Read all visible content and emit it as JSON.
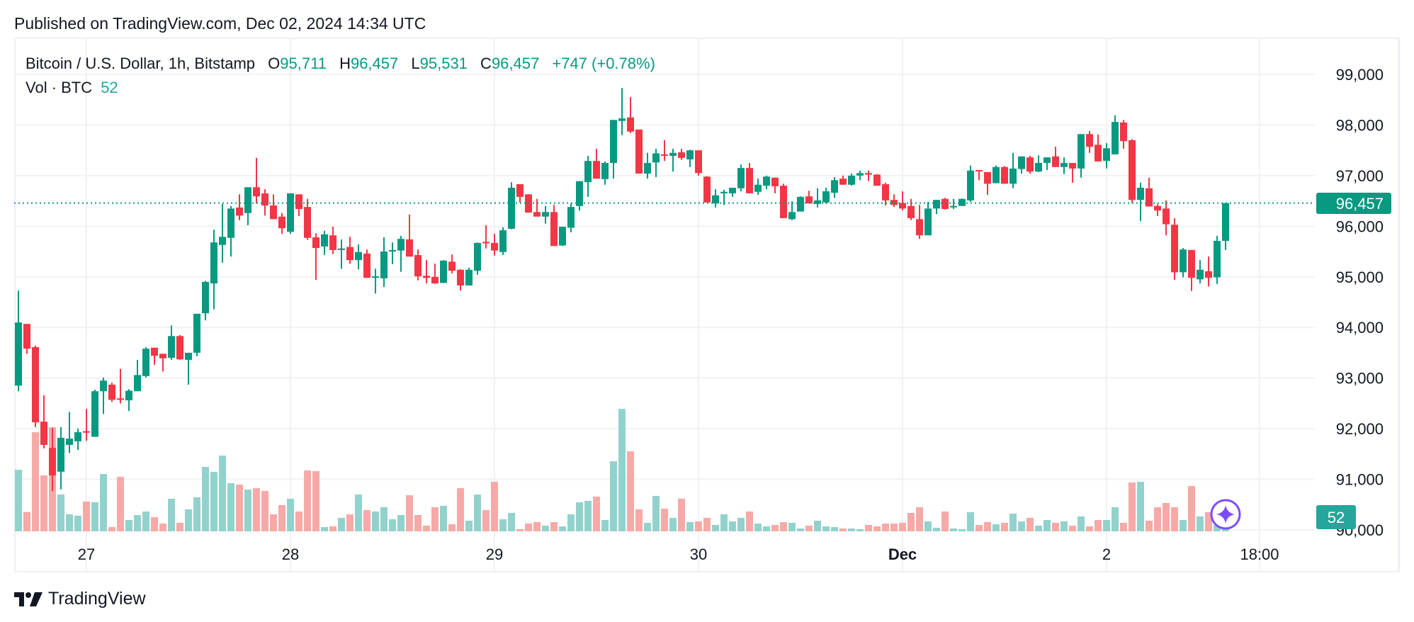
{
  "published": "Published on TradingView.com, Dec 02, 2024 14:34 UTC",
  "legend": {
    "symbol": "Bitcoin / U.S. Dollar, 1h, Bitstamp",
    "o_label": "O",
    "o": "95,711",
    "h_label": "H",
    "h": "96,457",
    "l_label": "L",
    "l": "95,531",
    "c_label": "C",
    "c": "96,457",
    "change": "+747 (+0.78%)",
    "vol_label": "Vol · BTC",
    "vol_value": "52"
  },
  "footer": {
    "brand": "TradingView"
  },
  "colors": {
    "up": "#089981",
    "down": "#F23645",
    "vol_up": "#92D2CC",
    "vol_down": "#F7A9A7",
    "vol_label": "#26A69A",
    "assistant": "#7B4DFF"
  },
  "chart_data": {
    "type": "candlestick",
    "interval": "1h",
    "x_tick_labels": [
      "27",
      "28",
      "29",
      "30",
      "Dec",
      "2",
      "18:00"
    ],
    "y_tick_labels": [
      "99,000",
      "98,000",
      "97,000",
      "96,000",
      "95,000",
      "94,000",
      "93,000",
      "92,000",
      "91,000",
      "90,000"
    ],
    "ylim": [
      90000,
      99000
    ],
    "grid": true,
    "last_price_label": "96,457",
    "last_volume_label": "52",
    "ohlc_fields": [
      "open",
      "high",
      "low",
      "close"
    ],
    "ohlc": [
      [
        92851,
        94728,
        92740,
        94098
      ],
      [
        94070,
        94070,
        93480,
        93580
      ],
      [
        93610,
        93640,
        92030,
        92126
      ],
      [
        92140,
        92660,
        91610,
        91680
      ],
      [
        91620,
        92014,
        90770,
        91076
      ],
      [
        91150,
        92030,
        90800,
        91820
      ],
      [
        91680,
        92330,
        91520,
        91804
      ],
      [
        91750,
        92000,
        91580,
        91930
      ],
      [
        91950,
        92390,
        91760,
        91930
      ],
      [
        91840,
        92770,
        91840,
        92740
      ],
      [
        92740,
        93010,
        92290,
        92950
      ],
      [
        92870,
        92910,
        92530,
        92570
      ],
      [
        92600,
        93180,
        92500,
        92570
      ],
      [
        92560,
        92780,
        92350,
        92750
      ],
      [
        92740,
        93360,
        92740,
        93060
      ],
      [
        93040,
        93610,
        93010,
        93580
      ],
      [
        93600,
        93600,
        93260,
        93440
      ],
      [
        93480,
        93480,
        93130,
        93390
      ],
      [
        93400,
        94040,
        93360,
        93830
      ],
      [
        93830,
        93850,
        93360,
        93370
      ],
      [
        93360,
        93500,
        92870,
        93500
      ],
      [
        93500,
        94270,
        93430,
        94270
      ],
      [
        94280,
        94920,
        94140,
        94900
      ],
      [
        94870,
        95930,
        94360,
        95680
      ],
      [
        95630,
        96440,
        95280,
        95790
      ],
      [
        95770,
        96400,
        95400,
        96350
      ],
      [
        96370,
        96630,
        96120,
        96210
      ],
      [
        96260,
        96770,
        96020,
        96770
      ],
      [
        96770,
        97350,
        96450,
        96590
      ],
      [
        96650,
        96730,
        96210,
        96410
      ],
      [
        96410,
        96630,
        96140,
        96140
      ],
      [
        96190,
        96260,
        95850,
        95960
      ],
      [
        95890,
        96650,
        95850,
        96650
      ],
      [
        96630,
        96630,
        96200,
        96340
      ],
      [
        96380,
        96540,
        95730,
        95770
      ],
      [
        95780,
        95860,
        94940,
        95570
      ],
      [
        95600,
        95910,
        95430,
        95840
      ],
      [
        95820,
        95990,
        95450,
        95530
      ],
      [
        95530,
        95740,
        95160,
        95560
      ],
      [
        95590,
        95790,
        95260,
        95330
      ],
      [
        95330,
        95640,
        95150,
        95490
      ],
      [
        95460,
        95540,
        94980,
        94980
      ],
      [
        95000,
        95160,
        94670,
        95010
      ],
      [
        94970,
        95780,
        94800,
        95500
      ],
      [
        95500,
        95680,
        95250,
        95530
      ],
      [
        95520,
        95810,
        95100,
        95750
      ],
      [
        95740,
        96230,
        95400,
        95400
      ],
      [
        95430,
        95540,
        94930,
        95010
      ],
      [
        95020,
        95330,
        94870,
        94980
      ],
      [
        95000,
        95260,
        94860,
        94870
      ],
      [
        94880,
        95330,
        94880,
        95320
      ],
      [
        95300,
        95440,
        95070,
        95120
      ],
      [
        95140,
        95150,
        94730,
        94830
      ],
      [
        94830,
        95180,
        94830,
        95140
      ],
      [
        95120,
        95680,
        95040,
        95670
      ],
      [
        95690,
        96020,
        95560,
        95680
      ],
      [
        95670,
        95850,
        95420,
        95520
      ],
      [
        95490,
        95980,
        95430,
        95920
      ],
      [
        95950,
        96870,
        95940,
        96760
      ],
      [
        96830,
        96830,
        96470,
        96580
      ],
      [
        96630,
        96630,
        96270,
        96270
      ],
      [
        96280,
        96540,
        96190,
        96190
      ],
      [
        96190,
        96400,
        96050,
        96280
      ],
      [
        96280,
        96420,
        95610,
        95610
      ],
      [
        95620,
        95990,
        95610,
        95990
      ],
      [
        95970,
        96450,
        95880,
        96380
      ],
      [
        96400,
        96890,
        96310,
        96890
      ],
      [
        96870,
        97390,
        96580,
        97290
      ],
      [
        97290,
        97530,
        96940,
        96940
      ],
      [
        96930,
        97280,
        96820,
        97250
      ],
      [
        97250,
        98100,
        96940,
        98100
      ],
      [
        98080,
        98730,
        97800,
        98130
      ],
      [
        98150,
        98550,
        97840,
        97870
      ],
      [
        97910,
        97910,
        97040,
        97040
      ],
      [
        97040,
        97450,
        96940,
        97250
      ],
      [
        97260,
        97530,
        96970,
        97440
      ],
      [
        97420,
        97700,
        97290,
        97400
      ],
      [
        97390,
        97530,
        97080,
        97450
      ],
      [
        97460,
        97530,
        97310,
        97350
      ],
      [
        97320,
        97510,
        97170,
        97500
      ],
      [
        97500,
        97500,
        97000,
        97050
      ],
      [
        96980,
        96990,
        96470,
        96470
      ],
      [
        96450,
        96730,
        96370,
        96610
      ],
      [
        96650,
        96720,
        96420,
        96680
      ],
      [
        96650,
        96760,
        96580,
        96760
      ],
      [
        96750,
        97220,
        96690,
        97150
      ],
      [
        97150,
        97250,
        96650,
        96650
      ],
      [
        96680,
        96940,
        96620,
        96820
      ],
      [
        96800,
        97000,
        96730,
        96980
      ],
      [
        96960,
        96960,
        96650,
        96790
      ],
      [
        96800,
        96840,
        96160,
        96160
      ],
      [
        96140,
        96490,
        96120,
        96280
      ],
      [
        96290,
        96590,
        96290,
        96580
      ],
      [
        96590,
        96700,
        96450,
        96450
      ],
      [
        96440,
        96750,
        96370,
        96510
      ],
      [
        96470,
        96760,
        96450,
        96690
      ],
      [
        96660,
        96970,
        96560,
        96910
      ],
      [
        96940,
        97000,
        96820,
        96820
      ],
      [
        96820,
        97040,
        96800,
        97000
      ],
      [
        97000,
        97100,
        96910,
        97050
      ],
      [
        97050,
        97100,
        96890,
        97020
      ],
      [
        97020,
        97030,
        96800,
        96800
      ],
      [
        96830,
        96860,
        96410,
        96510
      ],
      [
        96520,
        96630,
        96380,
        96420
      ],
      [
        96460,
        96690,
        96310,
        96350
      ],
      [
        96400,
        96540,
        96120,
        96160
      ],
      [
        96140,
        96420,
        95750,
        95820
      ],
      [
        95820,
        96480,
        95820,
        96350
      ],
      [
        96350,
        96520,
        96240,
        96520
      ],
      [
        96540,
        96560,
        96330,
        96340
      ],
      [
        96390,
        96540,
        96340,
        96400
      ],
      [
        96400,
        96550,
        96400,
        96540
      ],
      [
        96510,
        97200,
        96480,
        97100
      ],
      [
        97110,
        97110,
        96910,
        97090
      ],
      [
        97070,
        97070,
        96620,
        96840
      ],
      [
        96850,
        97200,
        96850,
        97170
      ],
      [
        97170,
        97190,
        96840,
        96840
      ],
      [
        96840,
        97450,
        96750,
        97140
      ],
      [
        97130,
        97380,
        97040,
        97380
      ],
      [
        97360,
        97390,
        97040,
        97080
      ],
      [
        97080,
        97400,
        97070,
        97250
      ],
      [
        97250,
        97360,
        97110,
        97360
      ],
      [
        97380,
        97570,
        97170,
        97170
      ],
      [
        97170,
        97360,
        97030,
        97250
      ],
      [
        97250,
        97250,
        96860,
        97140
      ],
      [
        97140,
        97820,
        96960,
        97820
      ],
      [
        97820,
        97880,
        97450,
        97570
      ],
      [
        97610,
        97810,
        97280,
        97280
      ],
      [
        97290,
        97640,
        97140,
        97540
      ],
      [
        97420,
        98190,
        97420,
        98060
      ],
      [
        98050,
        98100,
        97530,
        97680
      ],
      [
        97700,
        97720,
        96460,
        96520
      ],
      [
        96520,
        96860,
        96100,
        96760
      ],
      [
        96750,
        96960,
        96390,
        96390
      ],
      [
        96400,
        96440,
        96200,
        96310
      ],
      [
        96350,
        96510,
        95820,
        96040
      ],
      [
        96030,
        96160,
        94940,
        95090
      ],
      [
        95090,
        95570,
        94990,
        95540
      ],
      [
        95530,
        95530,
        94720,
        94980
      ],
      [
        94950,
        95330,
        94870,
        95140
      ],
      [
        95110,
        95400,
        94810,
        94980
      ],
      [
        94990,
        95810,
        94860,
        95711
      ],
      [
        95711,
        96457,
        95531,
        96457
      ]
    ],
    "volume": [
      1130,
      355,
      1819,
      1026,
      1910,
      675,
      312,
      286,
      546,
      533,
      1052,
      78,
      1000,
      208,
      299,
      364,
      260,
      143,
      598,
      156,
      403,
      624,
      1182,
      1091,
      1390,
      883,
      857,
      766,
      792,
      740,
      312,
      481,
      598,
      364,
      1117,
      1104,
      78,
      91,
      247,
      312,
      675,
      390,
      364,
      442,
      221,
      299,
      662,
      299,
      104,
      442,
      468,
      130,
      792,
      195,
      675,
      390,
      909,
      221,
      338,
      39,
      143,
      169,
      104,
      169,
      91,
      312,
      533,
      559,
      637,
      208,
      1286,
      2247,
      1468,
      403,
      156,
      650,
      416,
      247,
      598,
      169,
      182,
      247,
      117,
      312,
      182,
      247,
      364,
      143,
      91,
      117,
      169,
      156,
      52,
      104,
      195,
      91,
      78,
      52,
      52,
      39,
      117,
      91,
      143,
      143,
      156,
      338,
      442,
      182,
      65,
      364,
      52,
      39,
      351,
      117,
      169,
      130,
      156,
      325,
      182,
      247,
      104,
      208,
      156,
      182,
      104,
      273,
      91,
      208,
      208,
      442,
      156,
      896,
      909,
      195,
      442,
      520,
      442,
      208,
      831,
      273,
      351,
      117,
      52
    ]
  }
}
